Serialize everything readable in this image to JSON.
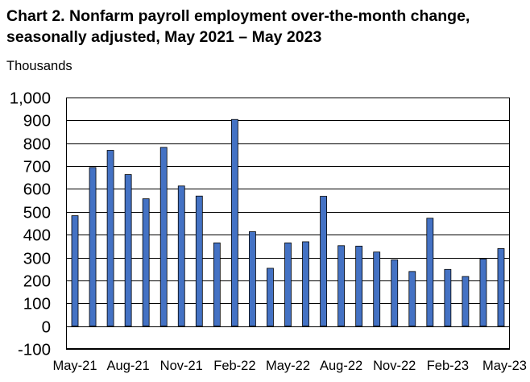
{
  "chart_data": {
    "type": "bar",
    "title": "Chart 2. Nonfarm payroll employment over-the-month change, seasonally adjusted, May 2021 – May 2023",
    "ylabel": "Thousands",
    "xlabel": "",
    "ylim": [
      -100,
      1000
    ],
    "y_ticks": [
      -100,
      0,
      100,
      200,
      300,
      400,
      500,
      600,
      700,
      800,
      900,
      1000
    ],
    "y_tick_labels": [
      "-100",
      "0",
      "100",
      "200",
      "300",
      "400",
      "500",
      "600",
      "700",
      "800",
      "900",
      "1,000"
    ],
    "grid": true,
    "legend": "none",
    "bar_color": "#4472C4",
    "categories": [
      "May-21",
      "Jun-21",
      "Jul-21",
      "Aug-21",
      "Sep-21",
      "Oct-21",
      "Nov-21",
      "Dec-21",
      "Jan-22",
      "Feb-22",
      "Mar-22",
      "Apr-22",
      "May-22",
      "Jun-22",
      "Jul-22",
      "Aug-22",
      "Sep-22",
      "Oct-22",
      "Nov-22",
      "Dec-22",
      "Jan-23",
      "Feb-23",
      "Mar-23",
      "Apr-23",
      "May-23"
    ],
    "x_tick_labels": [
      "May-21",
      "Aug-21",
      "Nov-21",
      "Feb-22",
      "May-22",
      "Aug-22",
      "Nov-22",
      "Feb-23",
      "May-23"
    ],
    "values": [
      483,
      694,
      769,
      663,
      557,
      782,
      613,
      569,
      364,
      904,
      413,
      253,
      364,
      369,
      568,
      352,
      350,
      324,
      290,
      239,
      472,
      248,
      217,
      294,
      339
    ]
  }
}
